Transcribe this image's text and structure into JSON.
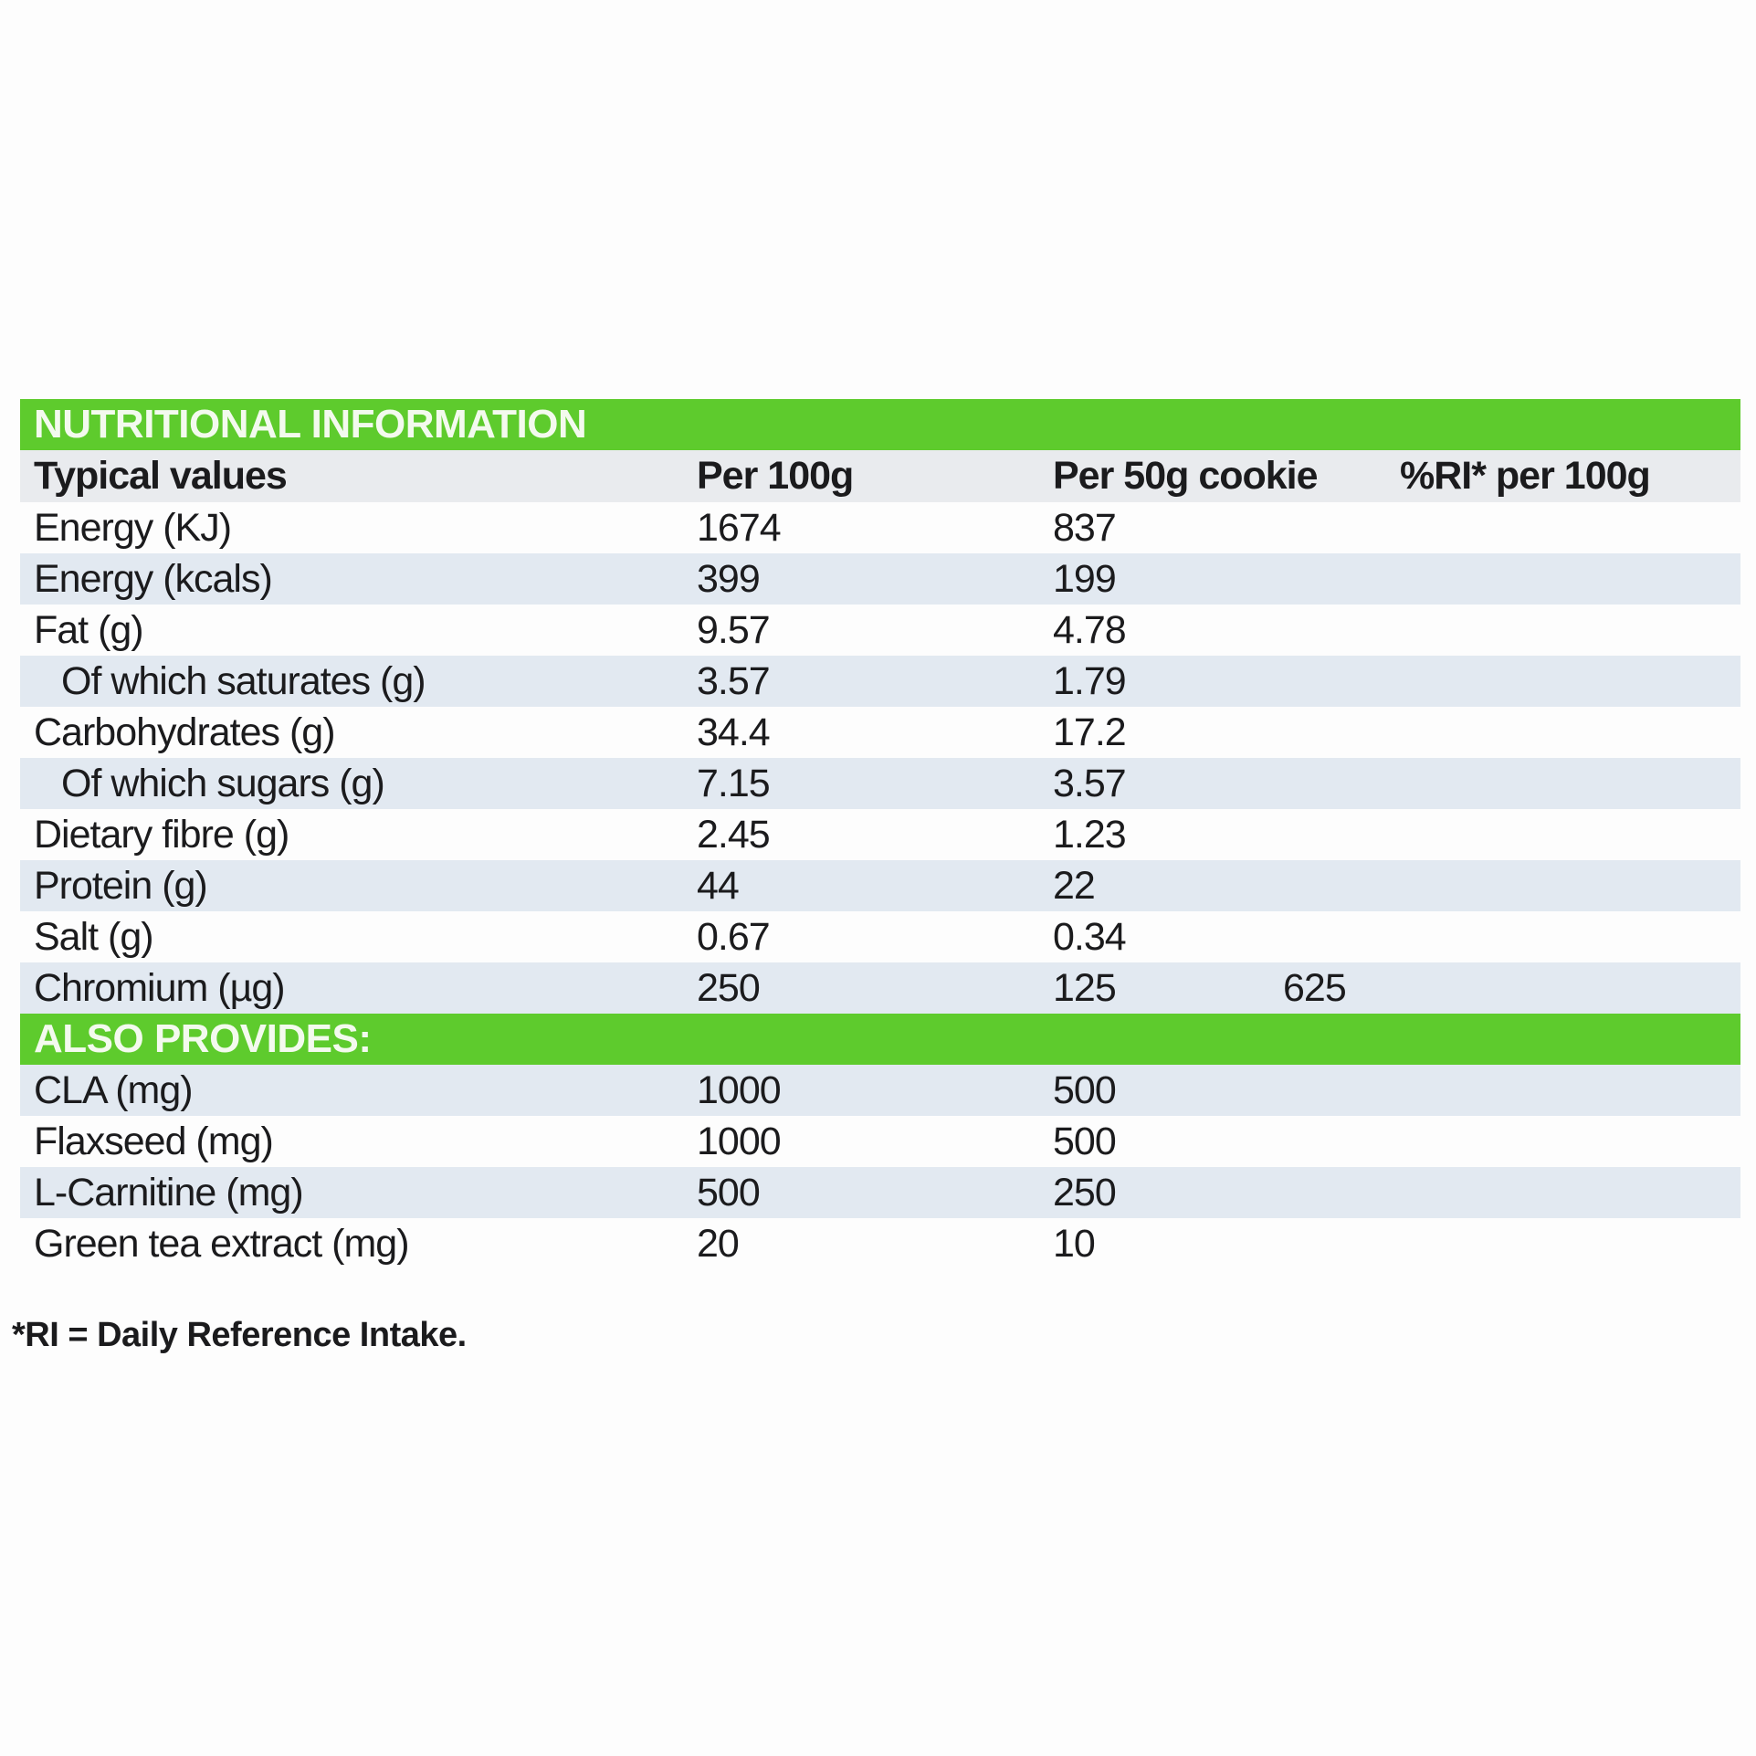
{
  "colors": {
    "green_bar": "#5ecb2d",
    "band_blue": "#e2e9f1",
    "header_band": "#e9ebee",
    "text": "#1b1b1d",
    "bar_text": "#f3faee"
  },
  "table": {
    "title": "NUTRITIONAL INFORMATION",
    "columns": [
      "Typical values",
      "Per 100g",
      "Per 50g cookie",
      "%RI* per 100g"
    ],
    "rows": [
      {
        "label": "Energy (KJ)",
        "per100": "1674",
        "per50": "837",
        "ri": ""
      },
      {
        "label": "Energy (kcals)",
        "per100": "399",
        "per50": "199",
        "ri": ""
      },
      {
        "label": "Fat (g)",
        "per100": "9.57",
        "per50": "4.78",
        "ri": ""
      },
      {
        "label": "Of which saturates (g)",
        "per100": "3.57",
        "per50": "1.79",
        "ri": "",
        "indent": true
      },
      {
        "label": "Carbohydrates (g)",
        "per100": "34.4",
        "per50": "17.2",
        "ri": ""
      },
      {
        "label": "Of which sugars (g)",
        "per100": "7.15",
        "per50": "3.57",
        "ri": "",
        "indent": true
      },
      {
        "label": "Dietary fibre (g)",
        "per100": "2.45",
        "per50": "1.23",
        "ri": ""
      },
      {
        "label": "Protein (g)",
        "per100": "44",
        "per50": "22",
        "ri": ""
      },
      {
        "label": "Salt (g)",
        "per100": "0.67",
        "per50": "0.34",
        "ri": ""
      },
      {
        "label": "Chromium (µg)",
        "per100": "250",
        "per50": "125",
        "ri": "625"
      }
    ],
    "also_provides_title": "ALSO PROVIDES:",
    "also_rows": [
      {
        "label": "CLA (mg)",
        "per100": "1000",
        "per50": "500",
        "ri": ""
      },
      {
        "label": "Flaxseed (mg)",
        "per100": "1000",
        "per50": "500",
        "ri": ""
      },
      {
        "label": "L-Carnitine (mg)",
        "per100": "500",
        "per50": "250",
        "ri": ""
      },
      {
        "label": "Green tea extract (mg)",
        "per100": "20",
        "per50": "10",
        "ri": ""
      }
    ],
    "footnote": "*RI = Daily Reference Intake."
  }
}
